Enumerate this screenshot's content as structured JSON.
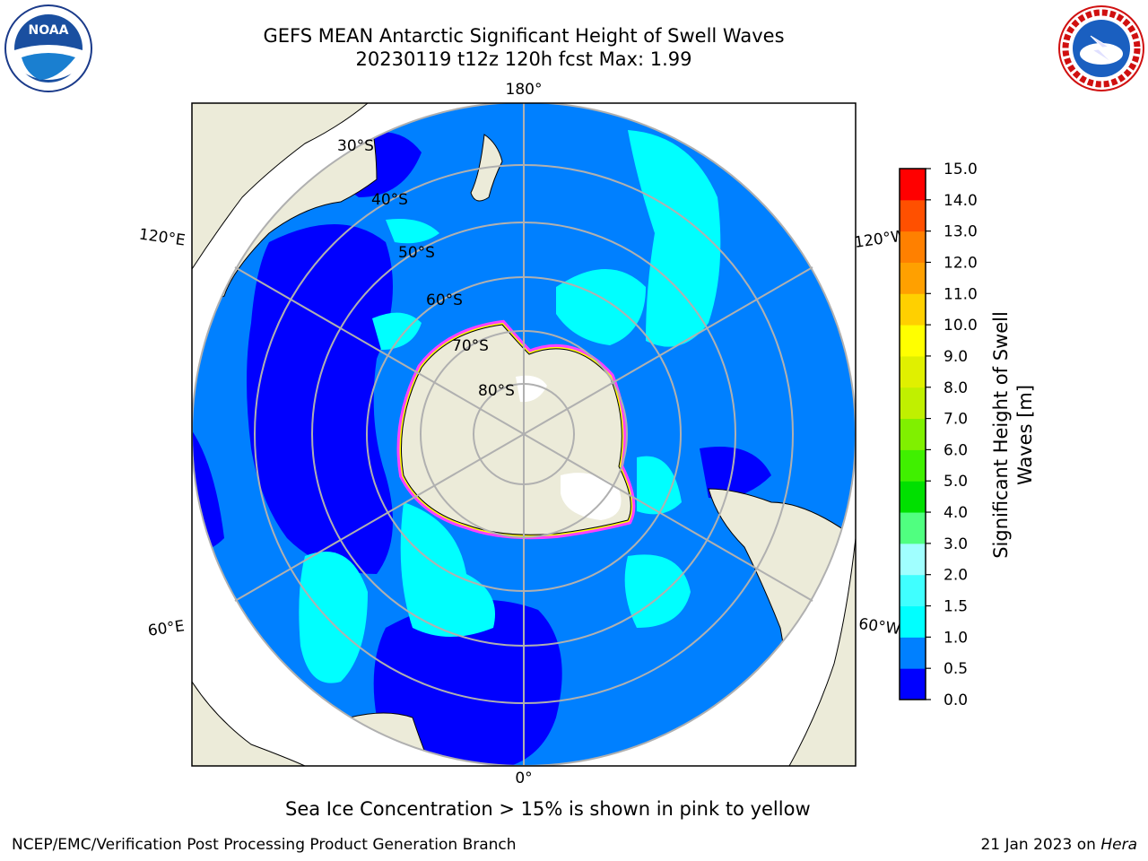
{
  "header": {
    "title_line1": "GEFS MEAN Antarctic Significant Height of Swell Waves",
    "title_line2": "20230119 t12z 120h fcst   Max: 1.99"
  },
  "map": {
    "projection": "south-polar-stereographic",
    "lon_labels": {
      "top": "180°",
      "bottom": "0°",
      "upper_left": "120°E",
      "upper_right": "120°W",
      "lower_left": "60°E",
      "lower_right": "60°W"
    },
    "lat_labels": [
      "30°S",
      "40°S",
      "50°S",
      "60°S",
      "70°S",
      "80°S"
    ],
    "colors": {
      "land": "#ecebd9",
      "ocean_low": "#0000ff",
      "ocean_mid": "#0080ff",
      "ocean_high": "#00ffff",
      "ice_edge_pink": "#ff40ff",
      "ice_edge_yellow": "#ffff00",
      "grid": "#b0b0b0"
    }
  },
  "colorbar": {
    "label_line1": "Significant Height of Swell",
    "label_line2": "Waves [m]",
    "ticks": [
      "0.0",
      "0.5",
      "1.0",
      "1.5",
      "2.0",
      "3.0",
      "4.0",
      "5.0",
      "6.0",
      "7.0",
      "8.0",
      "9.0",
      "10.0",
      "11.0",
      "12.0",
      "13.0",
      "14.0",
      "15.0"
    ],
    "colors": [
      "#0000ff",
      "#0080ff",
      "#00ffff",
      "#40ffff",
      "#a0ffff",
      "#50ff80",
      "#00e000",
      "#40f000",
      "#80f000",
      "#c0f000",
      "#e0f000",
      "#ffff00",
      "#ffd000",
      "#ffa000",
      "#ff8000",
      "#ff5000",
      "#ff0000"
    ]
  },
  "footer": {
    "note": "Sea Ice Concentration > 15% is shown in pink to yellow",
    "left": "NCEP/EMC/Verification Post Processing Product Generation Branch",
    "right_date": "21 Jan 2023 on",
    "right_host": "Hera"
  },
  "logos": {
    "noaa_text": "NOAA",
    "nws_text": "NATIONAL WEATHER SERVICE"
  }
}
